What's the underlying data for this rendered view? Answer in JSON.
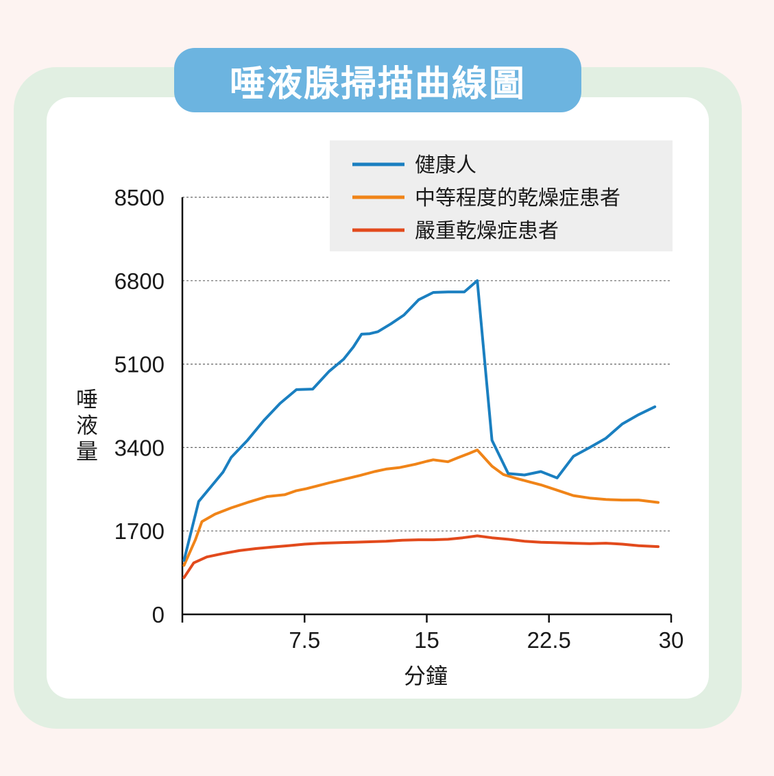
{
  "chart_data": {
    "type": "line",
    "title": "唾液腺掃描曲線圖",
    "xlabel": "分鐘",
    "ylabel": "唾液量",
    "xlim": [
      0,
      30
    ],
    "ylim": [
      0,
      8500
    ],
    "x_ticks": [
      "7.5",
      "15",
      "22.5",
      "30"
    ],
    "x_tick_values": [
      7.5,
      15,
      22.5,
      30
    ],
    "y_ticks": [
      "0",
      "1700",
      "3400",
      "5100",
      "6800",
      "8500"
    ],
    "y_tick_values": [
      0,
      1700,
      3400,
      5100,
      6800,
      8500
    ],
    "grid": "horizontal dashed",
    "legend_position": "top-right",
    "series": [
      {
        "name": "健康人",
        "color": "#1a7fc0",
        "x": [
          0.1,
          1,
          2,
          2.5,
          3,
          4,
          5,
          6,
          7,
          8,
          9,
          9.9,
          10.5,
          11,
          11.5,
          12,
          12.8,
          13.6,
          14.5,
          15.4,
          16.3,
          17.3,
          18.1,
          19,
          20,
          21,
          22,
          23,
          24,
          25,
          26,
          27,
          28,
          29
        ],
        "y": [
          1100,
          2300,
          2700,
          2900,
          3200,
          3550,
          3950,
          4300,
          4580,
          4590,
          4950,
          5200,
          5450,
          5710,
          5720,
          5760,
          5920,
          6100,
          6410,
          6560,
          6570,
          6570,
          6800,
          3550,
          2870,
          2840,
          2910,
          2780,
          3220,
          3400,
          3590,
          3880,
          4070,
          4230
        ]
      },
      {
        "name": "中等程度的乾燥症患者",
        "color": "#f08418",
        "x": [
          0.1,
          0.8,
          1.2,
          2,
          3,
          4,
          4.7,
          5.2,
          6.3,
          7,
          7.6,
          8.3,
          9,
          10,
          10.9,
          11.8,
          12.5,
          13.3,
          14.3,
          15,
          15.4,
          16.3,
          16.9,
          17.6,
          18.1,
          19,
          19.7,
          20.5,
          21.3,
          22,
          23,
          24,
          25,
          26,
          27,
          28,
          29.2
        ],
        "y": [
          1000,
          1520,
          1890,
          2040,
          2170,
          2280,
          2350,
          2400,
          2440,
          2520,
          2560,
          2620,
          2680,
          2760,
          2830,
          2910,
          2960,
          2990,
          3060,
          3120,
          3150,
          3110,
          3190,
          3280,
          3350,
          3020,
          2850,
          2770,
          2700,
          2640,
          2530,
          2420,
          2370,
          2340,
          2330,
          2330,
          2280
        ]
      },
      {
        "name": "嚴重乾燥症患者",
        "color": "#e24a1c",
        "x": [
          0.1,
          0.7,
          1.5,
          2.5,
          3.5,
          4.5,
          5.5,
          6.5,
          7.5,
          8.5,
          9.5,
          10.5,
          11.5,
          12.5,
          13.5,
          14.5,
          15.4,
          16.3,
          17.2,
          18.1,
          19,
          20,
          21,
          22,
          23,
          24,
          25,
          26,
          27,
          28,
          29.2
        ],
        "y": [
          750,
          1050,
          1170,
          1240,
          1300,
          1340,
          1370,
          1400,
          1430,
          1450,
          1460,
          1470,
          1480,
          1490,
          1510,
          1520,
          1520,
          1530,
          1560,
          1600,
          1560,
          1530,
          1490,
          1470,
          1460,
          1450,
          1440,
          1450,
          1430,
          1400,
          1380
        ]
      }
    ]
  }
}
